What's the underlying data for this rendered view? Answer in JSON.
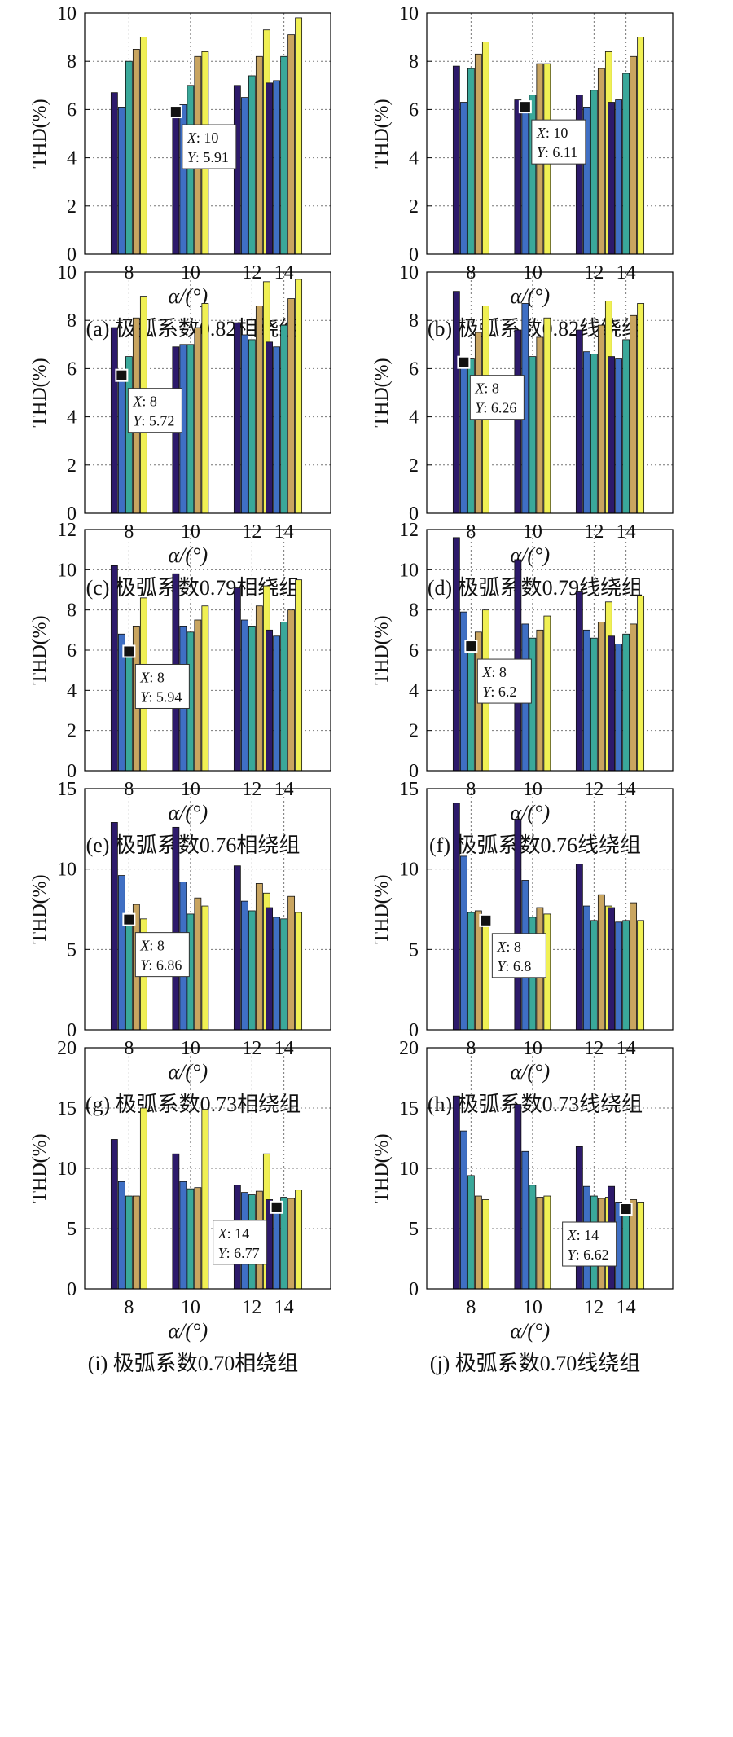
{
  "colors": [
    "#2d1a6b",
    "#3f6fc4",
    "#3aa89a",
    "#c9a560",
    "#f0f054"
  ],
  "chart_data": [
    {
      "type": "bar",
      "caption": "(a) 极弧系数0.82相绕组",
      "ylabel": "THD(%)",
      "xlabel": "α/(°)",
      "categories": [
        "8",
        "10",
        "12",
        "14"
      ],
      "ylim": [
        0,
        10
      ],
      "yticks": [
        "0",
        "2",
        "4",
        "6",
        "8",
        "10"
      ],
      "grid": true,
      "values": [
        [
          6.7,
          6.1,
          8.0,
          8.5,
          9.0
        ],
        [
          5.91,
          6.2,
          7.0,
          8.2,
          8.4
        ],
        [
          7.0,
          6.5,
          7.4,
          8.2,
          9.3
        ],
        [
          7.1,
          7.2,
          8.2,
          9.1,
          9.8
        ]
      ],
      "datatip": {
        "x_label": "X",
        "x": "10",
        "y_label": "Y",
        "y": "5.91",
        "cat": 1,
        "series": 0,
        "value": 5.91
      }
    },
    {
      "type": "bar",
      "caption": "(b) 极弧系数0.82线绕组",
      "ylabel": "THD(%)",
      "xlabel": "α/(°)",
      "categories": [
        "8",
        "10",
        "12",
        "14"
      ],
      "ylim": [
        0,
        10
      ],
      "yticks": [
        "0",
        "2",
        "4",
        "6",
        "8",
        "10"
      ],
      "grid": true,
      "values": [
        [
          7.8,
          6.3,
          7.7,
          8.3,
          8.8
        ],
        [
          6.4,
          6.11,
          6.6,
          7.9,
          7.9
        ],
        [
          6.6,
          6.1,
          6.8,
          7.7,
          8.4
        ],
        [
          6.3,
          6.4,
          7.5,
          8.2,
          9.0
        ]
      ],
      "datatip": {
        "x_label": "X",
        "x": "10",
        "y_label": "Y",
        "y": "6.11",
        "cat": 1,
        "series": 1,
        "value": 6.11
      }
    },
    {
      "type": "bar",
      "caption": "(c) 极弧系数0.79相绕组",
      "ylabel": "THD(%)",
      "xlabel": "α/(°)",
      "categories": [
        "8",
        "10",
        "12",
        "14"
      ],
      "ylim": [
        0,
        10
      ],
      "yticks": [
        "0",
        "2",
        "4",
        "6",
        "8",
        "10"
      ],
      "grid": true,
      "values": [
        [
          7.7,
          5.72,
          6.5,
          8.1,
          9.0
        ],
        [
          6.9,
          7.0,
          7.0,
          7.7,
          8.7
        ],
        [
          7.9,
          7.4,
          7.2,
          8.6,
          9.6
        ],
        [
          7.1,
          6.9,
          7.8,
          8.9,
          9.7
        ]
      ],
      "datatip": {
        "x_label": "X",
        "x": "8",
        "y_label": "Y",
        "y": "5.72",
        "cat": 0,
        "series": 1,
        "value": 5.72
      }
    },
    {
      "type": "bar",
      "caption": "(d) 极弧系数0.79线绕组",
      "ylabel": "THD(%)",
      "xlabel": "α/(°)",
      "categories": [
        "8",
        "10",
        "12",
        "14"
      ],
      "ylim": [
        0,
        10
      ],
      "yticks": [
        "0",
        "2",
        "4",
        "6",
        "8",
        "10"
      ],
      "grid": true,
      "values": [
        [
          9.2,
          6.26,
          6.4,
          7.5,
          8.6
        ],
        [
          7.6,
          8.7,
          6.5,
          7.3,
          8.1
        ],
        [
          7.6,
          6.7,
          6.6,
          7.8,
          8.8
        ],
        [
          6.5,
          6.4,
          7.2,
          8.2,
          8.7
        ]
      ],
      "datatip": {
        "x_label": "X",
        "x": "8",
        "y_label": "Y",
        "y": "6.26",
        "cat": 0,
        "series": 1,
        "value": 6.26
      }
    },
    {
      "type": "bar",
      "caption": "(e) 极弧系数0.76相绕组",
      "ylabel": "THD(%)",
      "xlabel": "α/(°)",
      "categories": [
        "8",
        "10",
        "12",
        "14"
      ],
      "ylim": [
        0,
        12
      ],
      "yticks": [
        "0",
        "2",
        "4",
        "6",
        "8",
        "10",
        "12"
      ],
      "grid": true,
      "values": [
        [
          10.2,
          6.8,
          5.94,
          7.2,
          8.6
        ],
        [
          9.8,
          7.2,
          6.9,
          7.5,
          8.2
        ],
        [
          9.1,
          7.5,
          7.2,
          8.2,
          9.2
        ],
        [
          7.0,
          6.7,
          7.4,
          8.0,
          9.5
        ]
      ],
      "datatip": {
        "x_label": "X",
        "x": "8",
        "y_label": "Y",
        "y": "5.94",
        "cat": 0,
        "series": 2,
        "value": 5.94
      }
    },
    {
      "type": "bar",
      "caption": "(f) 极弧系数0.76线绕组",
      "ylabel": "THD(%)",
      "xlabel": "α/(°)",
      "categories": [
        "8",
        "10",
        "12",
        "14"
      ],
      "ylim": [
        0,
        12
      ],
      "yticks": [
        "0",
        "2",
        "4",
        "6",
        "8",
        "10",
        "12"
      ],
      "grid": true,
      "values": [
        [
          11.6,
          7.9,
          6.2,
          6.9,
          8.0
        ],
        [
          10.5,
          7.3,
          6.6,
          7.0,
          7.7
        ],
        [
          8.9,
          7.0,
          6.6,
          7.4,
          8.4
        ],
        [
          6.7,
          6.3,
          6.8,
          7.3,
          8.7
        ]
      ],
      "datatip": {
        "x_label": "X",
        "x": "8",
        "y_label": "Y",
        "y": "6.2",
        "cat": 0,
        "series": 2,
        "value": 6.2
      }
    },
    {
      "type": "bar",
      "caption": "(g) 极弧系数0.73相绕组",
      "ylabel": "THD(%)",
      "xlabel": "α/(°)",
      "categories": [
        "8",
        "10",
        "12",
        "14"
      ],
      "ylim": [
        0,
        15
      ],
      "yticks": [
        "0",
        "5",
        "10",
        "15"
      ],
      "grid": true,
      "values": [
        [
          12.9,
          9.6,
          6.86,
          7.8,
          6.9
        ],
        [
          12.6,
          9.2,
          7.2,
          8.2,
          7.7
        ],
        [
          10.2,
          8.0,
          7.4,
          9.1,
          8.5
        ],
        [
          7.6,
          7.0,
          6.9,
          8.3,
          7.3
        ]
      ],
      "datatip": {
        "x_label": "X",
        "x": "8",
        "y_label": "Y",
        "y": "6.86",
        "cat": 0,
        "series": 2,
        "value": 6.86
      }
    },
    {
      "type": "bar",
      "caption": "(h) 极弧系数0.73线绕组",
      "ylabel": "THD(%)",
      "xlabel": "α/(°)",
      "categories": [
        "8",
        "10",
        "12",
        "14"
      ],
      "ylim": [
        0,
        15
      ],
      "yticks": [
        "0",
        "5",
        "10",
        "15"
      ],
      "grid": true,
      "values": [
        [
          14.1,
          10.8,
          7.3,
          7.4,
          6.8
        ],
        [
          13.1,
          9.3,
          7.0,
          7.6,
          7.2
        ],
        [
          10.3,
          7.7,
          6.8,
          8.4,
          7.7
        ],
        [
          7.6,
          6.7,
          6.8,
          7.9,
          6.8
        ]
      ],
      "datatip": {
        "x_label": "X",
        "x": "8",
        "y_label": "Y",
        "y": "6.8",
        "cat": 0,
        "series": 4,
        "value": 6.8
      }
    },
    {
      "type": "bar",
      "caption": "(i) 极弧系数0.70相绕组",
      "ylabel": "THD(%)",
      "xlabel": "α/(°)",
      "categories": [
        "8",
        "10",
        "12",
        "14"
      ],
      "ylim": [
        0,
        20
      ],
      "yticks": [
        "0",
        "5",
        "10",
        "15",
        "20"
      ],
      "grid": true,
      "values": [
        [
          12.4,
          8.9,
          7.7,
          7.7,
          15.0
        ],
        [
          11.2,
          8.9,
          8.3,
          8.4,
          14.9
        ],
        [
          8.6,
          8.0,
          7.8,
          8.1,
          11.2
        ],
        [
          7.4,
          6.77,
          7.6,
          7.5,
          8.2
        ]
      ],
      "datatip": {
        "x_label": "X",
        "x": "14",
        "y_label": "Y",
        "y": "6.77",
        "cat": 3,
        "series": 1,
        "value": 6.77
      }
    },
    {
      "type": "bar",
      "caption": "(j) 极弧系数0.70线绕组",
      "ylabel": "THD(%)",
      "xlabel": "α/(°)",
      "categories": [
        "8",
        "10",
        "12",
        "14"
      ],
      "ylim": [
        0,
        20
      ],
      "yticks": [
        "0",
        "5",
        "10",
        "15",
        "20"
      ],
      "grid": true,
      "values": [
        [
          16.0,
          13.1,
          9.4,
          7.7,
          7.4
        ],
        [
          15.3,
          11.4,
          8.6,
          7.6,
          7.7
        ],
        [
          11.8,
          8.5,
          7.7,
          7.5,
          7.6
        ],
        [
          8.5,
          7.2,
          6.62,
          7.4,
          7.2
        ]
      ],
      "datatip": {
        "x_label": "X",
        "x": "14",
        "y_label": "Y",
        "y": "6.62",
        "cat": 3,
        "series": 2,
        "value": 6.62
      }
    }
  ]
}
